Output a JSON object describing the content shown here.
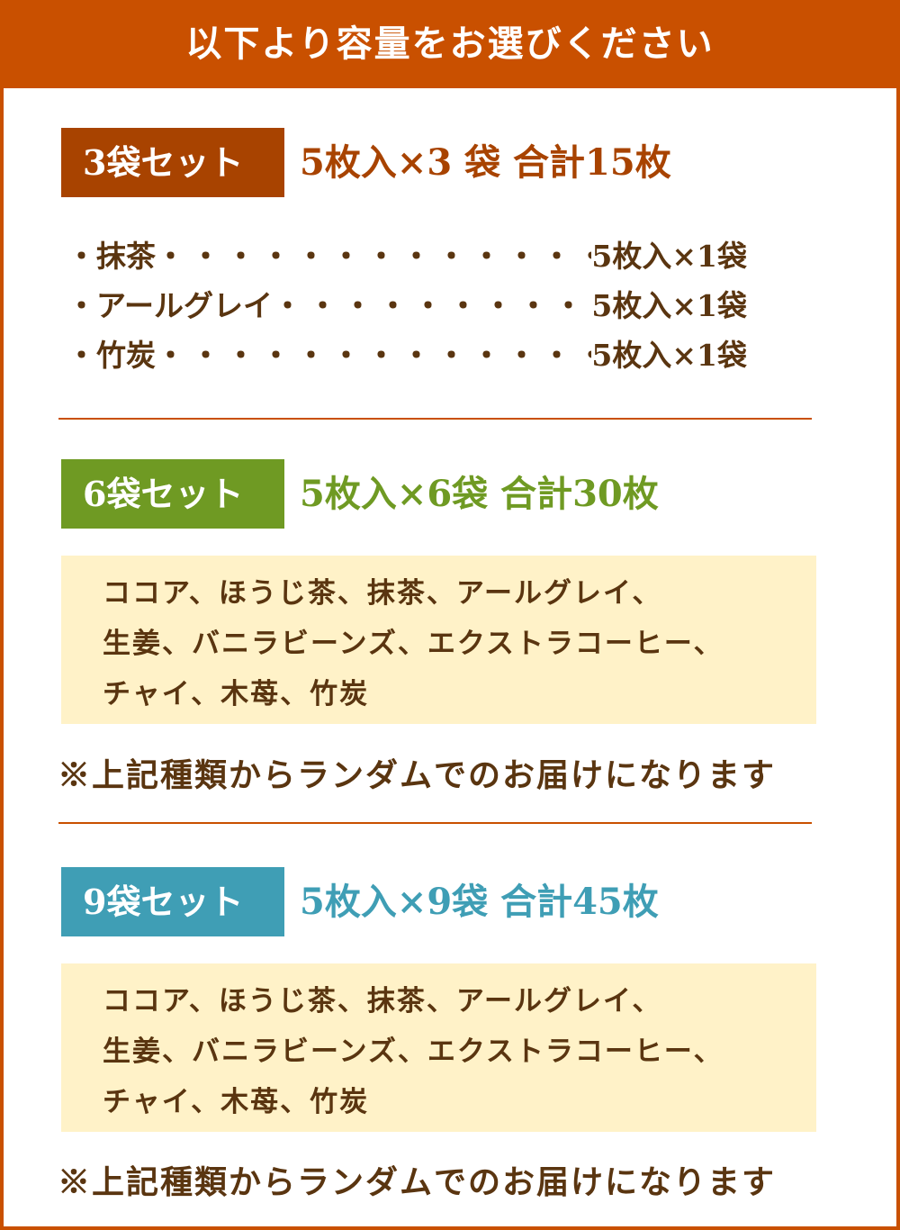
{
  "header": {
    "title": "以下より容量をお選びください"
  },
  "colors": {
    "header": "#c95000",
    "set3": "#a84300",
    "set6": "#6f9a23",
    "set9": "#3f9eb5",
    "cream": "#fff2c8",
    "text": "#5a3510"
  },
  "set3": {
    "label": "3袋セット",
    "title": "5枚入×3 袋 合計15枚",
    "items": [
      {
        "name": "・抹茶",
        "value": "5枚入×1袋"
      },
      {
        "name": "・アールグレイ",
        "value": "5枚入×1袋"
      },
      {
        "name": "・竹炭",
        "value": "5枚入×1袋"
      }
    ]
  },
  "set6": {
    "label": "6袋セット",
    "title": "5枚入×6袋 合計30枚",
    "lines": [
      "ココア、ほうじ茶、抹茶、アールグレイ、",
      "生姜、バニラビーンズ、エクストラコーヒー、",
      "チャイ、木苺、竹炭"
    ],
    "note": "※上記種類からランダムでのお届けになります"
  },
  "set9": {
    "label": "9袋セット",
    "title": "5枚入×9袋 合計45枚",
    "lines": [
      "ココア、ほうじ茶、抹茶、アールグレイ、",
      "生姜、バニラビーンズ、エクストラコーヒー、",
      "チャイ、木苺、竹炭"
    ],
    "note": "※上記種類からランダムでのお届けになります"
  },
  "dots": "・・・・・・・・・・・・・・・・・・・・"
}
